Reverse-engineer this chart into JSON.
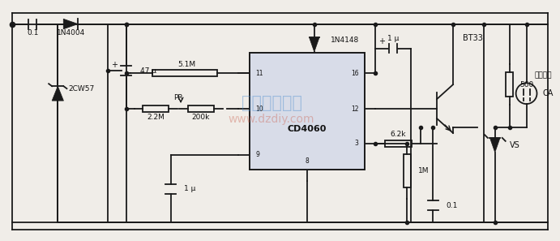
{
  "bg_color": "#f0ede8",
  "line_color": "#1a1a1a",
  "lw": 1.3,
  "fig_w": 6.91,
  "fig_h": 2.97,
  "components": {
    "C01_label": "0.1",
    "D1_label": "1N4004",
    "D2_label": "1N4148",
    "Z1_label": "2CW57",
    "C47u_label": "47 μ",
    "R51M_label": "5.1M",
    "R22M_label": "2.2M",
    "R200k_label": "200k",
    "PR_label": "PR",
    "C1u_bot_label": "1 μ",
    "C1u_top_label": "1 μ",
    "IC_label": "CD4060",
    "BT33_label": "BT33",
    "R62k_label": "6.2k",
    "R1M_label": "1M",
    "C01b_label": "0.1",
    "R560_label": "560",
    "CA_label": "CA",
    "VS_label": "VS",
    "power_label": "电源插座",
    "plus_sign": "+",
    "watermark1": "电子制作天地",
    "watermark2": "www.dzdiy.com"
  }
}
